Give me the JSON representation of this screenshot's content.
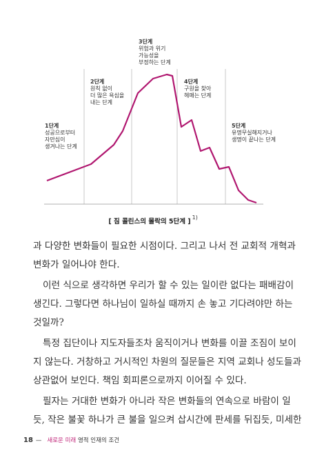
{
  "figure": {
    "stages": [
      {
        "title": "1단계",
        "lines": [
          "성공으로부터",
          "자만심이",
          "생겨나는 단계"
        ]
      },
      {
        "title": "2단계",
        "lines": [
          "원칙 없이",
          "더 많은 욕심을",
          "내는 단계"
        ]
      },
      {
        "title": "3단계",
        "lines": [
          "위험과 위기",
          "가능성을",
          "부정하는 단계"
        ]
      },
      {
        "title": "4단계",
        "lines": [
          "구원을 찾아",
          "헤매는 단계"
        ]
      },
      {
        "title": "5단계",
        "lines": [
          "유명무실해지거나",
          "생명이 끝나는 단계"
        ]
      }
    ],
    "caption": "[ 짐 콜린스의 몰락의 5단계 ]",
    "footnote": "1)"
  },
  "body": {
    "paragraphs": [
      [
        "과 다양한 변화들이 필요한 시점이다. 그리고 나서 전 교회적 개혁과",
        "변화가 일어나야 한다."
      ],
      [
        "이런 식으로 생각하면 우리가 할 수 있는 일이란 없다는 패배감이",
        "생긴다. 그렇다면 하나님이 일하실 때까지 손 놓고 기다려야만 하는",
        "것일까?"
      ],
      [
        "특정 집단이나 지도자들조차 움직이거나 변화를 이끌 조짐이 보이",
        "지 않는다. 거창하고 거시적인 차원의 질문들은 지역 교회나 성도들과",
        "상관없어 보인다. 책임 회피론으로까지 이어질 수 있다."
      ],
      [
        "필자는 거대한 변화가 아니라 작은 변화들의 연속으로 바람이 일",
        "듯, 작은 불꽃 하나가 큰 불을 일으켜 삽시간에 판세를 뒤집듯, 미세한"
      ]
    ]
  },
  "footer": {
    "page": "18",
    "series": "새로운 미래",
    "title": "영적 인재의 조건"
  }
}
